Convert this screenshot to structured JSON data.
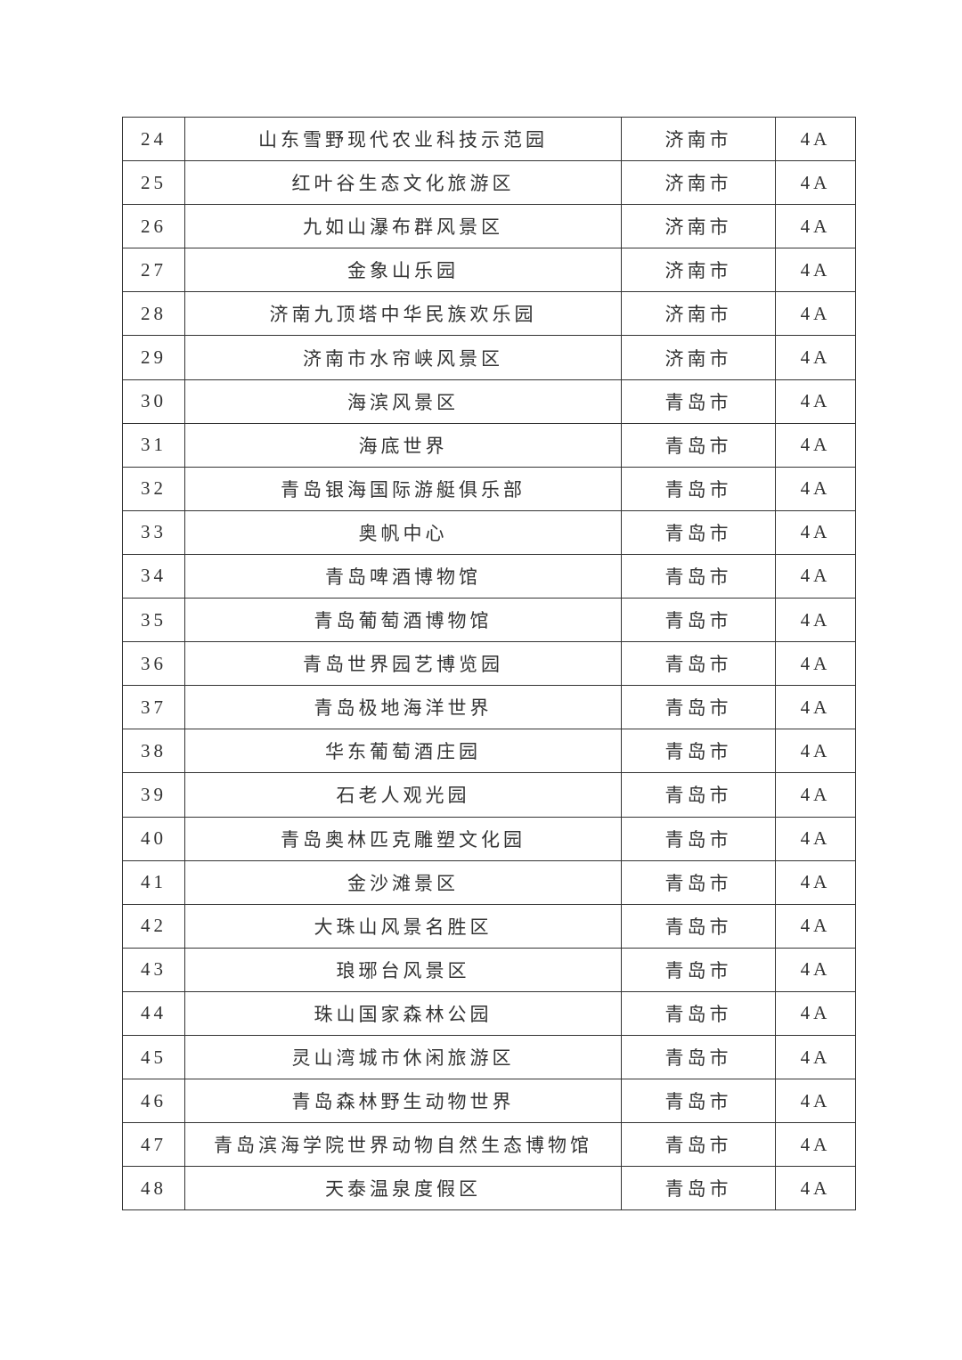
{
  "rows": [
    {
      "no": "24",
      "name": "山东雪野现代农业科技示范园",
      "city": "济南市",
      "grade": "4A"
    },
    {
      "no": "25",
      "name": "红叶谷生态文化旅游区",
      "city": "济南市",
      "grade": "4A"
    },
    {
      "no": "26",
      "name": "九如山瀑布群风景区",
      "city": "济南市",
      "grade": "4A"
    },
    {
      "no": "27",
      "name": "金象山乐园",
      "city": "济南市",
      "grade": "4A"
    },
    {
      "no": "28",
      "name": "济南九顶塔中华民族欢乐园",
      "city": "济南市",
      "grade": "4A"
    },
    {
      "no": "29",
      "name": "济南市水帘峡风景区",
      "city": "济南市",
      "grade": "4A"
    },
    {
      "no": "30",
      "name": "海滨风景区",
      "city": "青岛市",
      "grade": "4A"
    },
    {
      "no": "31",
      "name": "海底世界",
      "city": "青岛市",
      "grade": "4A"
    },
    {
      "no": "32",
      "name": "青岛银海国际游艇俱乐部",
      "city": "青岛市",
      "grade": "4A"
    },
    {
      "no": "33",
      "name": "奥帆中心",
      "city": "青岛市",
      "grade": "4A"
    },
    {
      "no": "34",
      "name": "青岛啤酒博物馆",
      "city": "青岛市",
      "grade": "4A"
    },
    {
      "no": "35",
      "name": "青岛葡萄酒博物馆",
      "city": "青岛市",
      "grade": "4A"
    },
    {
      "no": "36",
      "name": "青岛世界园艺博览园",
      "city": "青岛市",
      "grade": "4A"
    },
    {
      "no": "37",
      "name": "青岛极地海洋世界",
      "city": "青岛市",
      "grade": "4A"
    },
    {
      "no": "38",
      "name": "华东葡萄酒庄园",
      "city": "青岛市",
      "grade": "4A"
    },
    {
      "no": "39",
      "name": "石老人观光园",
      "city": "青岛市",
      "grade": "4A"
    },
    {
      "no": "40",
      "name": "青岛奥林匹克雕塑文化园",
      "city": "青岛市",
      "grade": "4A"
    },
    {
      "no": "41",
      "name": "金沙滩景区",
      "city": "青岛市",
      "grade": "4A"
    },
    {
      "no": "42",
      "name": "大珠山风景名胜区",
      "city": "青岛市",
      "grade": "4A"
    },
    {
      "no": "43",
      "name": "琅琊台风景区",
      "city": "青岛市",
      "grade": "4A"
    },
    {
      "no": "44",
      "name": "珠山国家森林公园",
      "city": "青岛市",
      "grade": "4A"
    },
    {
      "no": "45",
      "name": "灵山湾城市休闲旅游区",
      "city": "青岛市",
      "grade": "4A"
    },
    {
      "no": "46",
      "name": "青岛森林野生动物世界",
      "city": "青岛市",
      "grade": "4A"
    },
    {
      "no": "47",
      "name": "青岛滨海学院世界动物自然生态博物馆",
      "city": "青岛市",
      "grade": "4A"
    },
    {
      "no": "48",
      "name": "天泰温泉度假区",
      "city": "青岛市",
      "grade": "4A"
    }
  ]
}
